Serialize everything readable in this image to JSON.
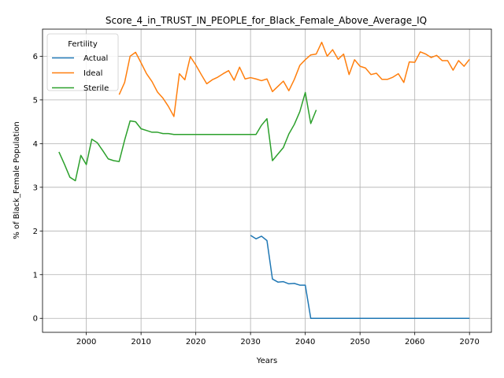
{
  "chart_data": {
    "type": "line",
    "title": "Score_4_in_TRUST_IN_PEOPLE_for_Black_Female_Above_Average_IQ",
    "xlabel": "Years",
    "ylabel": "% of Black_Female Population",
    "xlim": [
      1992,
      2074
    ],
    "ylim": [
      -0.32,
      6.62
    ],
    "xticks": [
      2000,
      2010,
      2020,
      2030,
      2040,
      2050,
      2060,
      2070
    ],
    "yticks": [
      0,
      1,
      2,
      3,
      4,
      5,
      6
    ],
    "grid": true,
    "legend": {
      "title": "Fertility",
      "placement": "top-left"
    },
    "colors": {
      "Actual": "#1f77b4",
      "Ideal": "#ff7f0e",
      "Sterile": "#2ca02c"
    },
    "series": [
      {
        "name": "Actual",
        "x": [
          2030,
          2031,
          2032,
          2033,
          2034,
          2035,
          2036,
          2037,
          2038,
          2039,
          2040,
          2041,
          2042,
          2043,
          2044,
          2045,
          2046,
          2047,
          2048,
          2049,
          2050,
          2051,
          2052,
          2053,
          2054,
          2055,
          2056,
          2057,
          2058,
          2059,
          2060,
          2061,
          2062,
          2063,
          2064,
          2065,
          2066,
          2067,
          2068,
          2069,
          2070
        ],
        "y": [
          1.9,
          1.82,
          1.88,
          1.78,
          0.9,
          0.83,
          0.84,
          0.79,
          0.8,
          0.76,
          0.76,
          0.0,
          0.0,
          0.0,
          0.0,
          0.0,
          0.0,
          0.0,
          0.0,
          0.0,
          0.0,
          0.0,
          0.0,
          0.0,
          0.0,
          0.0,
          0.0,
          0.0,
          0.0,
          0.0,
          0.0,
          0.0,
          0.0,
          0.0,
          0.0,
          0.0,
          0.0,
          0.0,
          0.0,
          0.0,
          0.0
        ]
      },
      {
        "name": "Ideal",
        "x": [
          2006,
          2007,
          2008,
          2009,
          2010,
          2011,
          2012,
          2013,
          2014,
          2015,
          2016,
          2017,
          2018,
          2019,
          2020,
          2021,
          2022,
          2023,
          2024,
          2025,
          2026,
          2027,
          2028,
          2029,
          2030,
          2031,
          2032,
          2033,
          2034,
          2035,
          2036,
          2037,
          2038,
          2039,
          2040,
          2041,
          2042,
          2043,
          2044,
          2045,
          2046,
          2047,
          2048,
          2049,
          2050,
          2051,
          2052,
          2053,
          2054,
          2055,
          2056,
          2057,
          2058,
          2059,
          2060,
          2061,
          2062,
          2063,
          2064,
          2065,
          2066,
          2067,
          2068,
          2069,
          2070
        ],
        "y": [
          5.12,
          5.4,
          6.0,
          6.09,
          5.85,
          5.6,
          5.42,
          5.18,
          5.04,
          4.85,
          4.62,
          5.6,
          5.46,
          5.99,
          5.8,
          5.58,
          5.37,
          5.46,
          5.52,
          5.6,
          5.67,
          5.45,
          5.75,
          5.48,
          5.51,
          5.48,
          5.44,
          5.48,
          5.19,
          5.31,
          5.43,
          5.21,
          5.47,
          5.79,
          5.92,
          6.03,
          6.05,
          6.32,
          6.0,
          6.15,
          5.93,
          6.05,
          5.58,
          5.92,
          5.77,
          5.73,
          5.58,
          5.61,
          5.47,
          5.47,
          5.52,
          5.6,
          5.4,
          5.87,
          5.86,
          6.1,
          6.05,
          5.97,
          6.02,
          5.9,
          5.9,
          5.68,
          5.9,
          5.77,
          5.93
        ]
      },
      {
        "name": "Sterile",
        "x": [
          1995,
          1996,
          1997,
          1998,
          1999,
          2000,
          2001,
          2002,
          2003,
          2004,
          2005,
          2006,
          2007,
          2008,
          2009,
          2010,
          2011,
          2012,
          2013,
          2014,
          2015,
          2016,
          2017,
          2018,
          2019,
          2020,
          2021,
          2022,
          2023,
          2024,
          2025,
          2026,
          2027,
          2028,
          2029,
          2030,
          2031,
          2032,
          2033,
          2034,
          2035,
          2036,
          2037,
          2038,
          2039,
          2040,
          2041,
          2042
        ],
        "y": [
          3.81,
          3.53,
          3.23,
          3.15,
          3.73,
          3.52,
          4.1,
          4.02,
          3.84,
          3.65,
          3.61,
          3.59,
          4.08,
          4.52,
          4.5,
          4.34,
          4.3,
          4.26,
          4.26,
          4.23,
          4.23,
          4.21,
          4.21,
          4.21,
          4.21,
          4.21,
          4.21,
          4.21,
          4.21,
          4.21,
          4.21,
          4.21,
          4.21,
          4.21,
          4.21,
          4.21,
          4.21,
          4.42,
          4.57,
          3.61,
          3.76,
          3.91,
          4.22,
          4.44,
          4.73,
          5.17,
          4.46,
          4.77
        ]
      }
    ]
  }
}
